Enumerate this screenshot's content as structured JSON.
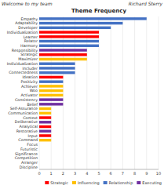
{
  "chart_data": {
    "type": "bar",
    "orientation": "horizontal",
    "title": "Theme Frequency",
    "annotations": [
      "Welcome to my team",
      "Richard Sterry"
    ],
    "categories": [
      "Empathy",
      "Adaptability",
      "Developer",
      "Individualization",
      "Learner",
      "Relator",
      "Harmony",
      "Responsibility",
      "Strategic",
      "Maximizer",
      "Individualization",
      "Includer",
      "Connectedness",
      "Ideation",
      "Positivity",
      "Achiever",
      "Woo",
      "Activator",
      "Consistency",
      "Belief",
      "Self-Assurance",
      "Communication",
      "Context",
      "Deliberative",
      "Analytical",
      "Restorative",
      "Input",
      "Command",
      "Focus",
      "Futuristic",
      "Significance",
      "Competition",
      "Arranger",
      "Discipline"
    ],
    "values": [
      9,
      7,
      6,
      5,
      5,
      5,
      5,
      4,
      4,
      4,
      3,
      3,
      3,
      2,
      2,
      2,
      2,
      2,
      2,
      2,
      1,
      1,
      1,
      1,
      1,
      1,
      1,
      1,
      0,
      0,
      0,
      0,
      0,
      0
    ],
    "colors": [
      "#4472C4",
      "#4472C4",
      "#4472C4",
      "#FF0000",
      "#FF0000",
      "#4472C4",
      "#4472C4",
      "#7030A0",
      "#FF0000",
      "#FFC000",
      "#4472C4",
      "#4472C4",
      "#4472C4",
      "#FF0000",
      "#4472C4",
      "#FFC000",
      "#FFC000",
      "#FFC000",
      "#7030A0",
      "#7030A0",
      "#FFC000",
      "#FFC000",
      "#FF0000",
      "#7030A0",
      "#FF0000",
      "#7030A0",
      "#FF0000",
      "#FFC000",
      "#888888",
      "#888888",
      "#888888",
      "#888888",
      "#888888",
      "#888888"
    ],
    "xlim": [
      0,
      10
    ],
    "xticks": [
      0,
      1,
      2,
      3,
      4,
      5,
      6,
      7,
      8,
      9,
      10
    ],
    "grid": true,
    "legend": "lower right",
    "legend_entries": [
      {
        "name": "Strategic",
        "color": "#FF0000"
      },
      {
        "name": "Influencing",
        "color": "#FFC000"
      },
      {
        "name": "Relationship",
        "color": "#4472C4"
      },
      {
        "name": "Executing",
        "color": "#7030A0"
      }
    ]
  }
}
